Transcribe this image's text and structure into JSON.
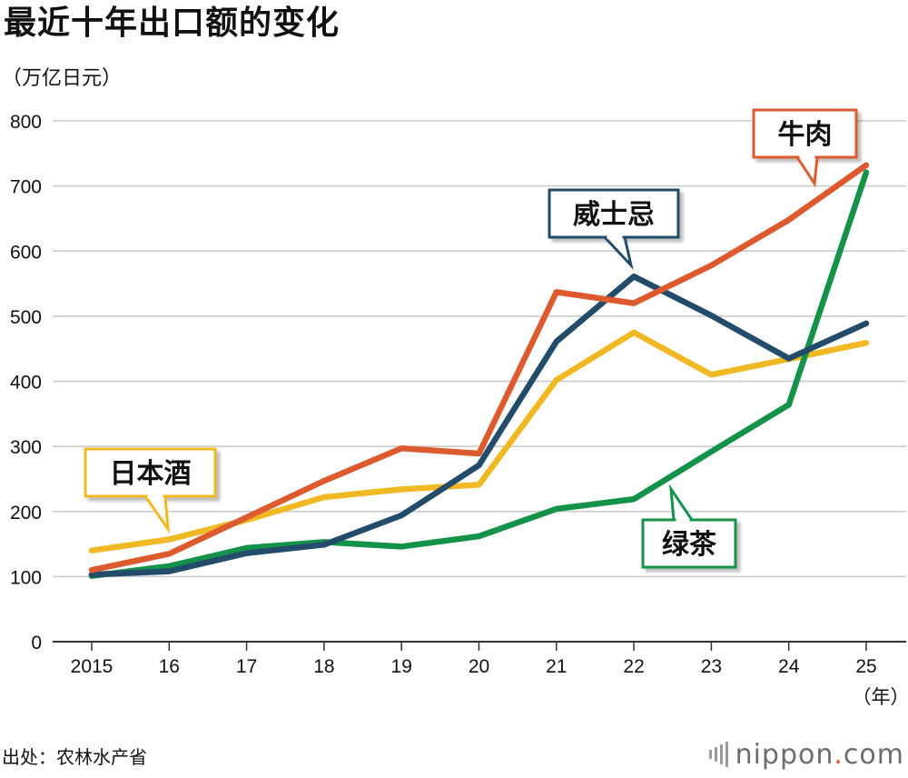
{
  "title": "最近十年出口额的变化",
  "unit": "（万亿日元）",
  "source": "出处：农林水产省",
  "brand": {
    "word": "nippon",
    "dot": ".",
    "suffix": "com"
  },
  "colors": {
    "sake": "#f0b823",
    "whisky": "#234b6a",
    "beef": "#dd5a2e",
    "green_tea": "#15924a",
    "grid": "#c8c8c8",
    "axis": "#333333"
  },
  "chart_data": {
    "type": "line",
    "x_tick_labels": [
      "2015",
      "16",
      "17",
      "18",
      "19",
      "20",
      "21",
      "22",
      "23",
      "24",
      "25"
    ],
    "x_unit_label": "（年）",
    "y_ticks": [
      0,
      100,
      200,
      300,
      400,
      500,
      600,
      700,
      800
    ],
    "ylim": [
      0,
      800
    ],
    "grid": true,
    "series": [
      {
        "key": "sake",
        "name": "日本酒",
        "values": [
          140,
          157,
          187,
          222,
          234,
          241,
          402,
          475,
          410,
          434,
          459
        ]
      },
      {
        "key": "green_tea",
        "name": "绿茶",
        "values": [
          101,
          116,
          144,
          153,
          146,
          162,
          204,
          219,
          292,
          364,
          721
        ]
      },
      {
        "key": "whisky",
        "name": "威士忌",
        "values": [
          103,
          108,
          136,
          149,
          194,
          271,
          461,
          561,
          501,
          435,
          489
        ]
      },
      {
        "key": "beef",
        "name": "牛肉",
        "values": [
          110,
          135,
          191,
          247,
          297,
          289,
          537,
          520,
          578,
          648,
          732
        ]
      }
    ]
  }
}
